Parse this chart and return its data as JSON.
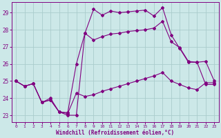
{
  "xlabel": "Windchill (Refroidissement éolien,°C)",
  "bg_color": "#cce8e8",
  "grid_color": "#aacccc",
  "line_color": "#800080",
  "xlim": [
    -0.5,
    23.5
  ],
  "ylim": [
    22.6,
    29.6
  ],
  "yticks": [
    23,
    24,
    25,
    26,
    27,
    28,
    29
  ],
  "xticks": [
    0,
    1,
    2,
    3,
    4,
    5,
    6,
    7,
    8,
    9,
    10,
    11,
    12,
    13,
    14,
    15,
    16,
    17,
    18,
    19,
    20,
    21,
    22,
    23
  ],
  "line_volatile_x": [
    0,
    1,
    2,
    3,
    4,
    5,
    6,
    7,
    8,
    9,
    10,
    11,
    12,
    13,
    14,
    15,
    16,
    17,
    18,
    19,
    20,
    21,
    22,
    23
  ],
  "line_volatile_y": [
    25.0,
    24.7,
    24.85,
    23.75,
    23.9,
    23.2,
    23.0,
    23.0,
    27.8,
    29.2,
    28.85,
    29.1,
    29.0,
    29.05,
    29.1,
    29.15,
    28.8,
    29.3,
    27.7,
    26.9,
    26.1,
    26.1,
    24.8,
    24.8
  ],
  "line_max_x": [
    0,
    1,
    2,
    3,
    4,
    5,
    6,
    7,
    8,
    9,
    10,
    11,
    12,
    13,
    14,
    15,
    16,
    17,
    18,
    19,
    20,
    21,
    22,
    23
  ],
  "line_max_y": [
    25.0,
    24.7,
    24.85,
    23.75,
    24.0,
    23.2,
    23.15,
    26.0,
    27.8,
    27.4,
    27.6,
    27.75,
    27.8,
    27.9,
    27.95,
    28.0,
    28.1,
    28.5,
    27.3,
    26.95,
    26.15,
    26.1,
    26.15,
    25.0
  ],
  "line_min_x": [
    0,
    1,
    2,
    3,
    4,
    5,
    6,
    7,
    8,
    9,
    10,
    11,
    12,
    13,
    14,
    15,
    16,
    17,
    18,
    19,
    20,
    21,
    22,
    23
  ],
  "line_min_y": [
    25.0,
    24.7,
    24.85,
    23.75,
    23.9,
    23.2,
    23.1,
    24.3,
    24.1,
    24.2,
    24.4,
    24.55,
    24.7,
    24.85,
    25.0,
    25.15,
    25.3,
    25.5,
    25.0,
    24.8,
    24.6,
    24.5,
    24.9,
    24.9
  ]
}
